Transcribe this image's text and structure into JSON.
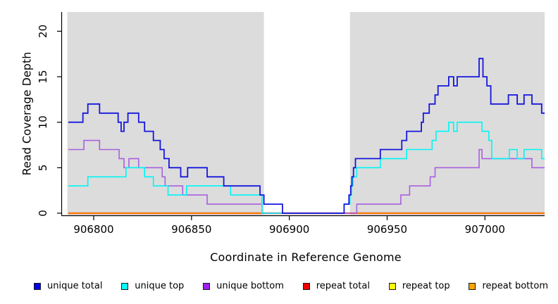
{
  "figure": {
    "background": "#ffffff",
    "panel_color": "#dcdcdc",
    "axis_color": "#000000"
  },
  "chart_data": {
    "type": "line",
    "subtype": "step",
    "title": "",
    "xlabel": "Coordinate in Reference Genome",
    "ylabel": "Read Coverage Depth",
    "xlim": [
      906786.5,
      907030.5
    ],
    "ylim": [
      0,
      22.1
    ],
    "x_ticks": [
      906800,
      906850,
      906900,
      906950,
      907000
    ],
    "x_tick_labels": [
      "906800",
      "906850",
      "906900",
      "906950",
      "907000"
    ],
    "y_ticks": [
      0,
      5,
      10,
      15,
      20
    ],
    "y_tick_labels": [
      "0",
      "5",
      "10",
      "15",
      "20"
    ],
    "grid": false,
    "legend_position": "bottom",
    "panel_shading": {
      "shaded_color": "#dcdcdc",
      "unshaded_gap_x": [
        906887,
        906931
      ]
    },
    "series": [
      {
        "name": "repeat top",
        "color": "#ffff00",
        "width": 1.6,
        "points": [
          [
            906787,
            0
          ]
        ],
        "end_x": 907030.5
      },
      {
        "name": "repeat total",
        "color": "#ee0000",
        "width": 2.2,
        "points": [
          [
            906787,
            0
          ]
        ],
        "end_x": 907030.5
      },
      {
        "name": "repeat bottom",
        "color": "#ffa500",
        "width": 1.6,
        "points": [
          [
            906787,
            0
          ]
        ],
        "end_x": 907030.5
      },
      {
        "name": "unique bottom",
        "color": "#a85fe0",
        "width": 1.6,
        "points": [
          [
            906787,
            7
          ],
          [
            906795,
            8
          ],
          [
            906803,
            7
          ],
          [
            906813,
            6
          ],
          [
            906815.5,
            5
          ],
          [
            906818,
            6
          ],
          [
            906823,
            5
          ],
          [
            906835,
            4
          ],
          [
            906836.5,
            3
          ],
          [
            906845.5,
            2
          ],
          [
            906858,
            1
          ],
          [
            906886,
            0
          ],
          [
            906934.5,
            1
          ],
          [
            906957,
            2
          ],
          [
            906961.5,
            3
          ],
          [
            906972,
            4
          ],
          [
            906974.5,
            5
          ],
          [
            906997,
            7
          ],
          [
            906998.5,
            6
          ],
          [
            907024,
            5
          ]
        ],
        "end_x": 907030.5
      },
      {
        "name": "unique top",
        "color": "#00f5f5",
        "width": 1.6,
        "points": [
          [
            906787,
            3
          ],
          [
            906797,
            4
          ],
          [
            906816.5,
            5
          ],
          [
            906826,
            4
          ],
          [
            906830.5,
            3
          ],
          [
            906838,
            2
          ],
          [
            906847.5,
            3
          ],
          [
            906870,
            2
          ],
          [
            906886,
            0
          ],
          [
            906928,
            1
          ],
          [
            906931,
            2
          ],
          [
            906931.8,
            3
          ],
          [
            906932.5,
            4
          ],
          [
            906934.5,
            5
          ],
          [
            906946.5,
            6
          ],
          [
            906960,
            7
          ],
          [
            906973,
            8
          ],
          [
            906975,
            9
          ],
          [
            906981.5,
            10
          ],
          [
            906984,
            9
          ],
          [
            906985.8,
            10
          ],
          [
            906998.5,
            9
          ],
          [
            907002,
            8
          ],
          [
            907003.5,
            6
          ],
          [
            907012.5,
            7
          ],
          [
            907016.5,
            6
          ],
          [
            907020,
            7
          ],
          [
            907029,
            6
          ]
        ],
        "end_x": 907030.5
      },
      {
        "name": "unique total",
        "color": "#1616dd",
        "width": 1.8,
        "points": [
          [
            906787,
            10
          ],
          [
            906794.5,
            11
          ],
          [
            906797,
            12
          ],
          [
            906803,
            11
          ],
          [
            906812.5,
            10
          ],
          [
            906814,
            9
          ],
          [
            906815.5,
            10
          ],
          [
            906817.5,
            11
          ],
          [
            906823,
            10
          ],
          [
            906826,
            9
          ],
          [
            906830.5,
            8
          ],
          [
            906834,
            7
          ],
          [
            906836,
            6
          ],
          [
            906838.5,
            5
          ],
          [
            906844.5,
            4
          ],
          [
            906848,
            5
          ],
          [
            906858,
            4
          ],
          [
            906866.5,
            3
          ],
          [
            906885,
            2
          ],
          [
            906887,
            1
          ],
          [
            906896.5,
            0
          ],
          [
            906928,
            1
          ],
          [
            906930.5,
            2
          ],
          [
            906931.4,
            3
          ],
          [
            906932,
            4
          ],
          [
            906932.8,
            5
          ],
          [
            906933.8,
            6
          ],
          [
            906946.5,
            7
          ],
          [
            906957.5,
            8
          ],
          [
            906960,
            9
          ],
          [
            906967.5,
            10
          ],
          [
            906968.5,
            11
          ],
          [
            906971.5,
            12
          ],
          [
            906974.5,
            13
          ],
          [
            906976,
            14
          ],
          [
            906981.5,
            15
          ],
          [
            906984,
            14
          ],
          [
            906985.8,
            15
          ],
          [
            906997,
            17
          ],
          [
            906999,
            15
          ],
          [
            907001,
            14
          ],
          [
            907003,
            12
          ],
          [
            907012,
            13
          ],
          [
            907016.5,
            12
          ],
          [
            907020,
            13
          ],
          [
            907024,
            12
          ],
          [
            907029,
            11
          ]
        ],
        "end_x": 907030.5
      }
    ]
  },
  "legend": {
    "items": [
      {
        "label": "unique total",
        "color": "#0000ee"
      },
      {
        "label": "unique top",
        "color": "#00ffff"
      },
      {
        "label": "unique bottom",
        "color": "#a020f0"
      },
      {
        "label": "repeat total",
        "color": "#ee0000"
      },
      {
        "label": "repeat top",
        "color": "#ffff00"
      },
      {
        "label": "repeat bottom",
        "color": "#ffa500"
      }
    ]
  }
}
